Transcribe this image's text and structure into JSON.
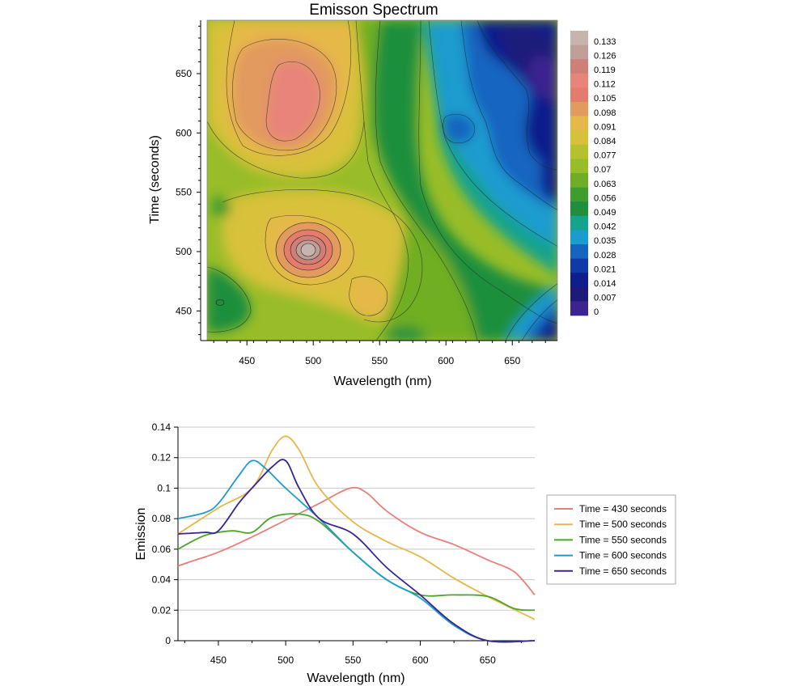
{
  "chart_data": [
    {
      "type": "heatmap",
      "title": "Emisson Spectrum",
      "xlabel": "Wavelength (nm)",
      "ylabel": "Time (seconds)",
      "xlim": [
        420,
        684
      ],
      "ylim": [
        425,
        695
      ],
      "x_ticks": [
        450,
        500,
        550,
        600,
        650
      ],
      "y_ticks": [
        450,
        500,
        550,
        600,
        650
      ],
      "colorbar": {
        "levels": [
          "0.133",
          "0.126",
          "0.119",
          "0.112",
          "0.105",
          "0.098",
          "0.091",
          "0.084",
          "0.077",
          "0.07",
          "0.063",
          "0.056",
          "0.049",
          "0.042",
          "0.035",
          "0.028",
          "0.021",
          "0.014",
          "0.007",
          "0"
        ],
        "colors": [
          "#c8b4ae",
          "#bf9f97",
          "#cf7f76",
          "#e8847a",
          "#e47c6c",
          "#e29a5e",
          "#e6b84a",
          "#d8c13a",
          "#b5c22d",
          "#98bd28",
          "#6fae24",
          "#3f9d2f",
          "#1f8f3e",
          "#14a38c",
          "#1b9ccf",
          "#1565c0",
          "#0f3aa8",
          "#101d8c",
          "#1e1a7a",
          "#3b2490"
        ]
      },
      "features": [
        {
          "label": "peak",
          "x": 496,
          "y": 501,
          "value": 0.133
        },
        {
          "label": "peak",
          "x": 492,
          "y": 624,
          "value": 0.112
        },
        {
          "label": "peak",
          "x": 543,
          "y": 463,
          "value": 0.098
        },
        {
          "label": "local",
          "x": 428,
          "y": 457,
          "value": 0.056
        },
        {
          "label": "low",
          "x": 675,
          "y": 650,
          "value": 0.0
        },
        {
          "label": "low",
          "x": 680,
          "y": 440,
          "value": 0.0
        }
      ]
    },
    {
      "type": "line",
      "title": "",
      "xlabel": "Wavelength (nm)",
      "ylabel": "Emission",
      "xlim": [
        420,
        685
      ],
      "ylim": [
        0,
        0.14
      ],
      "x_ticks": [
        450,
        500,
        550,
        600,
        650
      ],
      "y_ticks": [
        "0",
        "0.02",
        "0.04",
        "0.06",
        "0.08",
        "0.1",
        "0.12",
        "0.14"
      ],
      "grid": true,
      "legend": "right",
      "series": [
        {
          "name": "Time = 430 seconds",
          "color": "#e8807a",
          "x": [
            420,
            430,
            450,
            475,
            500,
            525,
            548,
            560,
            575,
            600,
            625,
            650,
            670,
            685
          ],
          "y": [
            0.049,
            0.052,
            0.058,
            0.068,
            0.079,
            0.09,
            0.1,
            0.097,
            0.085,
            0.071,
            0.063,
            0.053,
            0.045,
            0.03
          ]
        },
        {
          "name": "Time = 500 seconds",
          "color": "#e6b84a",
          "x": [
            420,
            450,
            475,
            490,
            500,
            510,
            525,
            550,
            575,
            600,
            625,
            650,
            685
          ],
          "y": [
            0.07,
            0.087,
            0.1,
            0.125,
            0.134,
            0.125,
            0.1,
            0.078,
            0.065,
            0.055,
            0.041,
            0.029,
            0.014
          ]
        },
        {
          "name": "Time = 550 seconds",
          "color": "#4ea52c",
          "x": [
            420,
            440,
            460,
            475,
            490,
            510,
            525,
            550,
            575,
            600,
            625,
            650,
            670,
            685
          ],
          "y": [
            0.06,
            0.069,
            0.072,
            0.071,
            0.081,
            0.083,
            0.078,
            0.058,
            0.04,
            0.03,
            0.03,
            0.029,
            0.021,
            0.02
          ]
        },
        {
          "name": "Time = 600 seconds",
          "color": "#1b9ccf",
          "x": [
            420,
            440,
            450,
            465,
            475,
            485,
            500,
            525,
            550,
            575,
            600,
            625,
            650,
            685
          ],
          "y": [
            0.08,
            0.084,
            0.09,
            0.108,
            0.118,
            0.113,
            0.1,
            0.08,
            0.058,
            0.04,
            0.028,
            0.01,
            0.0,
            0.0
          ]
        },
        {
          "name": "Time = 650 seconds",
          "color": "#3b2490",
          "x": [
            420,
            440,
            450,
            465,
            475,
            490,
            500,
            510,
            525,
            550,
            575,
            600,
            625,
            650,
            685
          ],
          "y": [
            0.07,
            0.071,
            0.072,
            0.09,
            0.1,
            0.114,
            0.118,
            0.1,
            0.08,
            0.07,
            0.048,
            0.03,
            0.011,
            0.0,
            0.0
          ]
        }
      ]
    }
  ]
}
